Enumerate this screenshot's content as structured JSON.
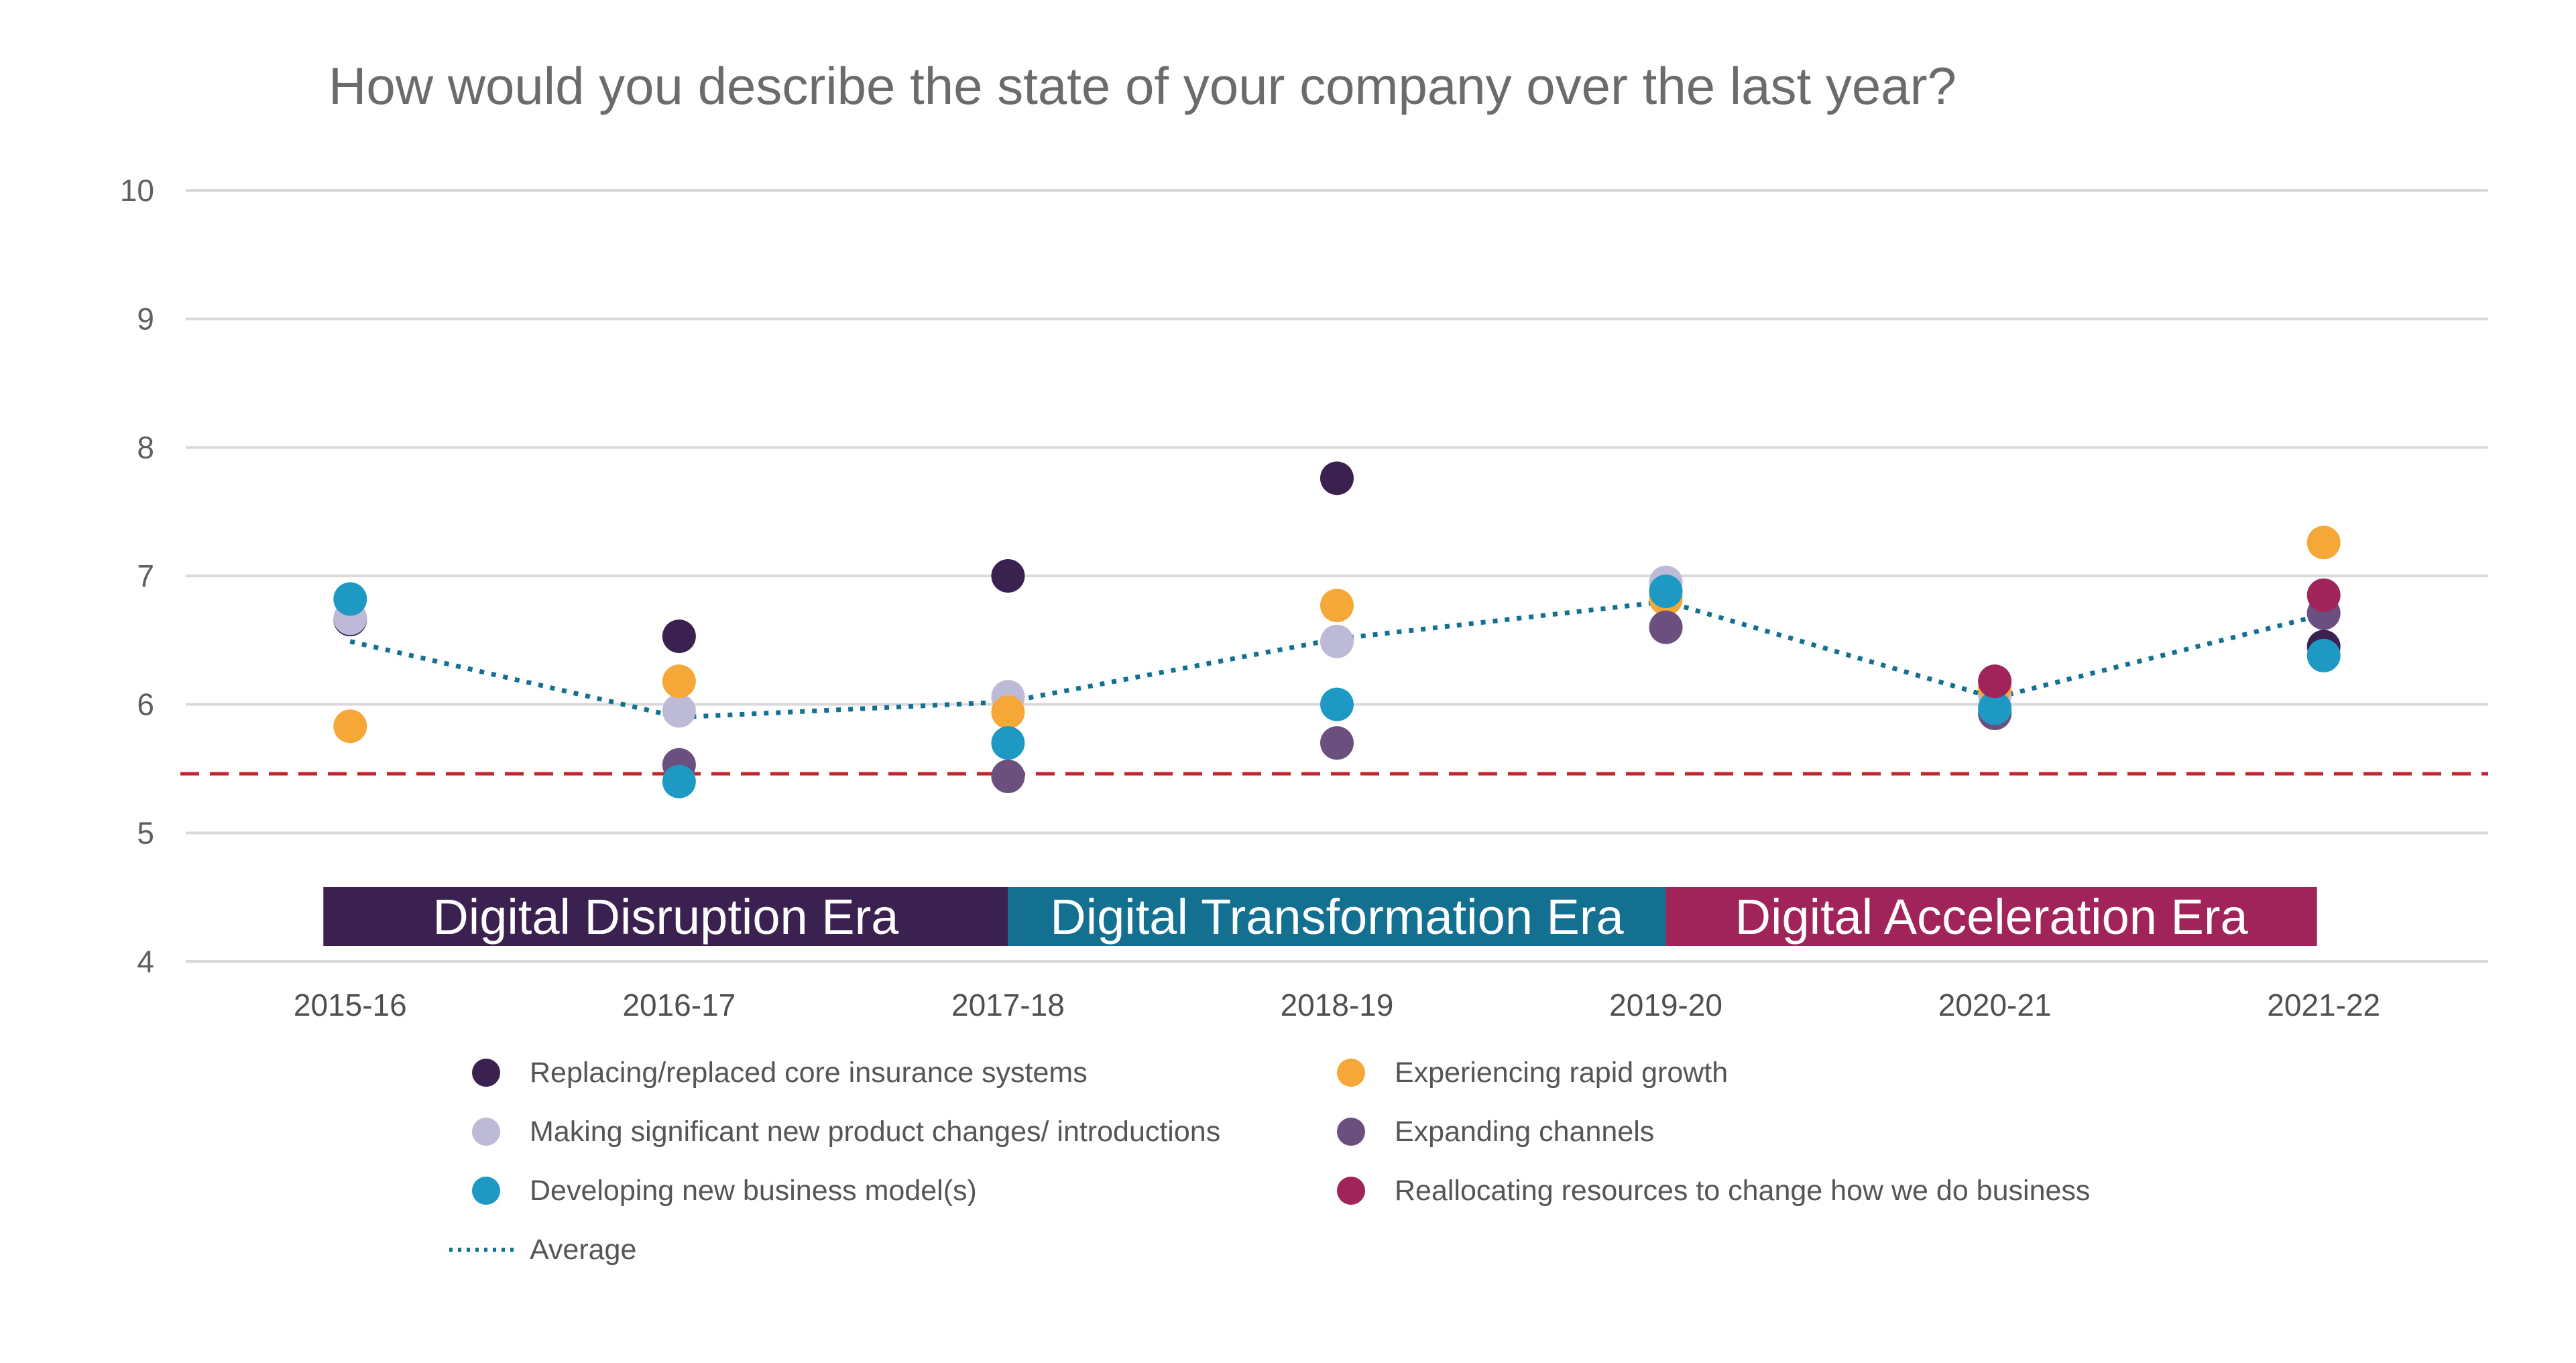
{
  "chart_data": {
    "type": "scatter",
    "title": "How would you describe the state of your company over the last year?",
    "xlabel": "",
    "ylabel": "",
    "ylim": [
      4,
      10
    ],
    "yticks": [
      4,
      5,
      6,
      7,
      8,
      9,
      10
    ],
    "grid": true,
    "categories": [
      "2015-16",
      "2016-17",
      "2017-18",
      "2018-19",
      "2019-20",
      "2020-21",
      "2021-22"
    ],
    "series": [
      {
        "name": "Replacing/replaced core insurance systems",
        "color": "#3b2150",
        "values": [
          6.66,
          6.53,
          7.0,
          7.76,
          null,
          null,
          6.45
        ]
      },
      {
        "name": "Experiencing rapid growth",
        "color": "#f5a737",
        "values": [
          5.83,
          6.18,
          5.94,
          6.77,
          6.82,
          6.13,
          7.26
        ]
      },
      {
        "name": "Making significant new product changes/ introductions",
        "color": "#bdbad8",
        "values": [
          6.67,
          5.95,
          6.06,
          6.49,
          6.95,
          6.07,
          null
        ]
      },
      {
        "name": "Expanding channels",
        "color": "#6b4f7e",
        "values": [
          null,
          5.53,
          5.44,
          5.7,
          6.6,
          5.93,
          6.71
        ]
      },
      {
        "name": "Developing new business model(s)",
        "color": "#1e99c4",
        "values": [
          6.82,
          5.4,
          5.7,
          6.0,
          6.88,
          5.97,
          6.38
        ]
      },
      {
        "name": "Reallocating resources to change how we do business",
        "color": "#a0245a",
        "values": [
          null,
          null,
          null,
          null,
          null,
          6.18,
          6.85
        ]
      }
    ],
    "average": {
      "name": "Average",
      "color": "#137091",
      "style": "dotted",
      "values": [
        6.49,
        5.9,
        6.02,
        6.51,
        6.8,
        6.05,
        6.7
      ]
    },
    "reference_line": {
      "value": 5.46,
      "color": "#c0262d",
      "style": "dashed"
    },
    "eras": [
      {
        "label": "Digital Disruption Era",
        "color": "#3b2150",
        "from": "2015-16",
        "to": "2017-18"
      },
      {
        "label": "Digital Transformation Era",
        "color": "#137091",
        "from": "2017-18",
        "to": "2019-20"
      },
      {
        "label": "Digital Acceleration Era",
        "color": "#a0245a",
        "from": "2019-20",
        "to": "2021-22"
      }
    ],
    "legend": {
      "placement": "bottom",
      "columns": [
        [
          "Replacing/replaced core insurance systems",
          "Making significant new product changes/ introductions",
          "Developing new business model(s)",
          "Average"
        ],
        [
          "Experiencing rapid growth",
          "Expanding channels",
          "Reallocating resources to change how we do business"
        ]
      ]
    }
  }
}
